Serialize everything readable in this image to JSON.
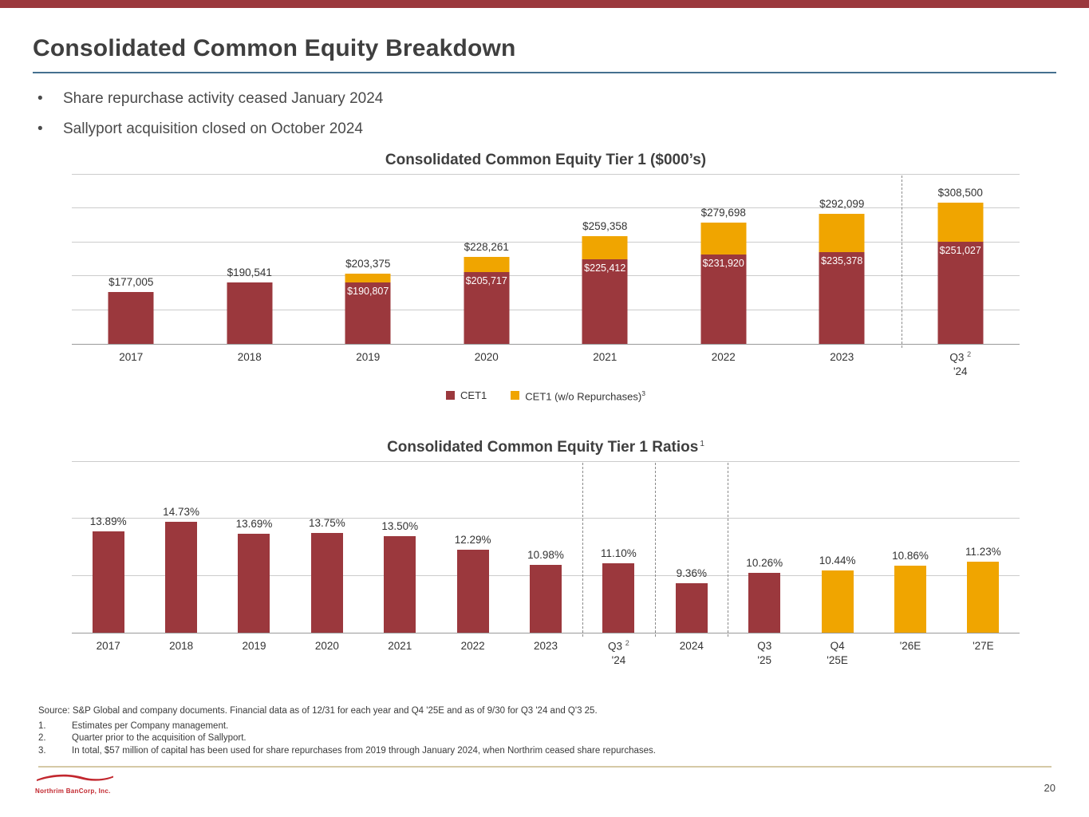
{
  "colors": {
    "maroon": "#9B383D",
    "gold": "#F0A500",
    "rule_blue": "#45708F",
    "logo_red": "#C2272E",
    "footer_line_tan": "#D5C9A6"
  },
  "slide": {
    "title": "Consolidated Common Equity Breakdown",
    "bullets": [
      "Share repurchase activity ceased January 2024",
      "Sallyport acquisition closed on October 2024"
    ],
    "page_number": "20",
    "logo_text": "Northrim BanCorp, Inc."
  },
  "chart_data": [
    {
      "type": "bar",
      "stacked": true,
      "title": "Consolidated Common Equity Tier 1 ($000’s)",
      "ylim": [
        100000,
        350000
      ],
      "gridline_step": 50000,
      "grid": true,
      "legend_position": "bottom",
      "separators_before": [
        7
      ],
      "categories": [
        {
          "line1": "2017"
        },
        {
          "line1": "2018"
        },
        {
          "line1": "2019"
        },
        {
          "line1": "2020"
        },
        {
          "line1": "2021"
        },
        {
          "line1": "2022"
        },
        {
          "line1": "2023"
        },
        {
          "line1": "Q3",
          "sup": "2",
          "line2": "'24"
        }
      ],
      "series": [
        {
          "name": "CET1",
          "color_key": "maroon",
          "values": [
            177005,
            190541,
            190807,
            205717,
            225412,
            231920,
            235378,
            251027
          ]
        },
        {
          "name": "CET1 (w/o Repurchases)",
          "sup": "3",
          "color_key": "gold",
          "values": [
            177005,
            190541,
            203375,
            228261,
            259358,
            279698,
            292099,
            308500
          ]
        }
      ],
      "total_labels": [
        "$177,005",
        "$190,541",
        "$203,375",
        "$228,261",
        "$259,358",
        "$279,698",
        "$292,099",
        "$308,500"
      ],
      "inside_labels": [
        "",
        "",
        "$190,807",
        "$205,717",
        "$225,412",
        "$231,920",
        "$235,378",
        "$251,027"
      ],
      "legend": [
        {
          "label": "CET1",
          "color_key": "maroon"
        },
        {
          "label": "CET1 (w/o Repurchases)",
          "sup": "3",
          "color_key": "gold"
        }
      ]
    },
    {
      "type": "bar",
      "title": "Consolidated Common Equity Tier 1 Ratios",
      "title_sup": "1",
      "ylim": [
        5,
        20
      ],
      "gridline_step": 5,
      "grid": true,
      "separators_before": [
        7,
        8,
        9
      ],
      "categories": [
        {
          "line1": "2017"
        },
        {
          "line1": "2018"
        },
        {
          "line1": "2019"
        },
        {
          "line1": "2020"
        },
        {
          "line1": "2021"
        },
        {
          "line1": "2022"
        },
        {
          "line1": "2023"
        },
        {
          "line1": "Q3",
          "sup": "2",
          "line2": "'24"
        },
        {
          "line1": "2024"
        },
        {
          "line1": "Q3",
          "line2": "'25"
        },
        {
          "line1": "Q4",
          "line2": "'25E"
        },
        {
          "line1": "'26E"
        },
        {
          "line1": "'27E"
        }
      ],
      "values": [
        13.89,
        14.73,
        13.69,
        13.75,
        13.5,
        12.29,
        10.98,
        11.1,
        9.36,
        10.26,
        10.44,
        10.86,
        11.23
      ],
      "value_labels": [
        "13.89%",
        "14.73%",
        "13.69%",
        "13.75%",
        "13.50%",
        "12.29%",
        "10.98%",
        "11.10%",
        "9.36%",
        "10.26%",
        "10.44%",
        "10.86%",
        "11.23%"
      ],
      "bar_color_keys": [
        "maroon",
        "maroon",
        "maroon",
        "maroon",
        "maroon",
        "maroon",
        "maroon",
        "maroon",
        "maroon",
        "maroon",
        "gold",
        "gold",
        "gold"
      ]
    }
  ],
  "footnotes": {
    "source": "Source: S&P Global and company documents. Financial data as of 12/31 for each year and Q4 '25E and as of 9/30 for Q3 '24 and Q'3 25.",
    "items": [
      {
        "num": "1.",
        "text": "Estimates per Company management."
      },
      {
        "num": "2.",
        "text": "Quarter prior to the acquisition of Sallyport."
      },
      {
        "num": "3.",
        "text": "In total, $57 million of capital has been used for share repurchases from 2019 through January 2024, when Northrim ceased share repurchases."
      }
    ]
  }
}
